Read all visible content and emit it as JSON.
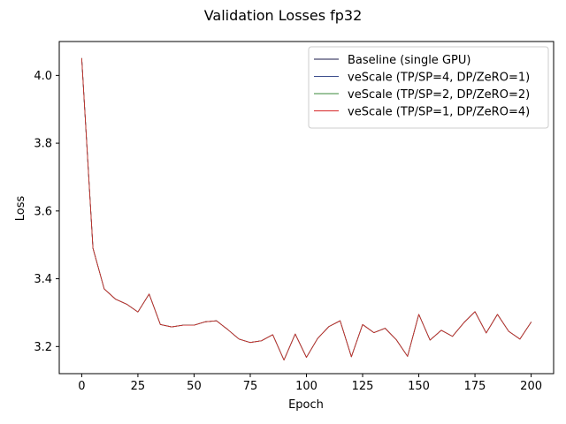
{
  "chart_data": {
    "type": "line",
    "title": "Validation Losses fp32",
    "xlabel": "Epoch",
    "ylabel": "Loss",
    "xlim": [
      -10,
      210
    ],
    "ylim": [
      3.12,
      4.1
    ],
    "xticks": [
      0,
      25,
      50,
      75,
      100,
      125,
      150,
      175,
      200
    ],
    "yticks": [
      3.2,
      3.4,
      3.6,
      3.8,
      4.0
    ],
    "xtick_labels": [
      "0",
      "25",
      "50",
      "75",
      "100",
      "125",
      "150",
      "175",
      "200"
    ],
    "ytick_labels": [
      "3.2",
      "3.4",
      "3.6",
      "3.8",
      "4.0"
    ],
    "legend_position": "top-right",
    "grid": false,
    "x": [
      0,
      5,
      10,
      15,
      20,
      25,
      30,
      35,
      40,
      45,
      50,
      55,
      60,
      65,
      70,
      75,
      80,
      85,
      90,
      95,
      100,
      105,
      110,
      115,
      120,
      125,
      130,
      135,
      140,
      145,
      150,
      155,
      160,
      165,
      170,
      175,
      180,
      185,
      190,
      195,
      200
    ],
    "series": [
      {
        "name": "Baseline (single GPU)",
        "color": "#1a1a4a",
        "values": [
          4.05,
          3.49,
          3.37,
          3.34,
          3.325,
          3.302,
          3.355,
          3.265,
          3.258,
          3.263,
          3.263,
          3.273,
          3.276,
          3.25,
          3.222,
          3.212,
          3.217,
          3.235,
          3.16,
          3.237,
          3.168,
          3.224,
          3.259,
          3.276,
          3.17,
          3.265,
          3.241,
          3.254,
          3.22,
          3.171,
          3.295,
          3.219,
          3.248,
          3.23,
          3.27,
          3.303,
          3.24,
          3.295,
          3.245,
          3.222,
          3.272
        ]
      },
      {
        "name": "veScale (TP/SP=4, DP/ZeRO=1)",
        "color": "#3b4c8c",
        "values": [
          4.05,
          3.49,
          3.37,
          3.34,
          3.325,
          3.302,
          3.355,
          3.265,
          3.258,
          3.263,
          3.263,
          3.273,
          3.276,
          3.25,
          3.222,
          3.212,
          3.217,
          3.235,
          3.16,
          3.237,
          3.168,
          3.224,
          3.259,
          3.276,
          3.17,
          3.265,
          3.241,
          3.254,
          3.22,
          3.171,
          3.295,
          3.219,
          3.248,
          3.23,
          3.27,
          3.303,
          3.24,
          3.295,
          3.245,
          3.222,
          3.272
        ]
      },
      {
        "name": "veScale (TP/SP=2, DP/ZeRO=2)",
        "color": "#3a8a3a",
        "values": [
          4.05,
          3.49,
          3.37,
          3.34,
          3.325,
          3.302,
          3.355,
          3.265,
          3.258,
          3.263,
          3.263,
          3.273,
          3.276,
          3.25,
          3.222,
          3.212,
          3.217,
          3.235,
          3.16,
          3.237,
          3.168,
          3.224,
          3.259,
          3.276,
          3.17,
          3.265,
          3.241,
          3.254,
          3.22,
          3.171,
          3.295,
          3.219,
          3.248,
          3.23,
          3.27,
          3.303,
          3.24,
          3.295,
          3.245,
          3.222,
          3.272
        ]
      },
      {
        "name": "veScale (TP/SP=1, DP/ZeRO=4)",
        "color": "#d62728",
        "values": [
          4.05,
          3.49,
          3.37,
          3.34,
          3.325,
          3.302,
          3.355,
          3.265,
          3.258,
          3.263,
          3.263,
          3.273,
          3.276,
          3.25,
          3.222,
          3.212,
          3.217,
          3.235,
          3.16,
          3.237,
          3.168,
          3.224,
          3.259,
          3.276,
          3.17,
          3.265,
          3.241,
          3.254,
          3.22,
          3.171,
          3.295,
          3.219,
          3.248,
          3.23,
          3.27,
          3.303,
          3.24,
          3.295,
          3.245,
          3.222,
          3.272
        ]
      }
    ]
  }
}
